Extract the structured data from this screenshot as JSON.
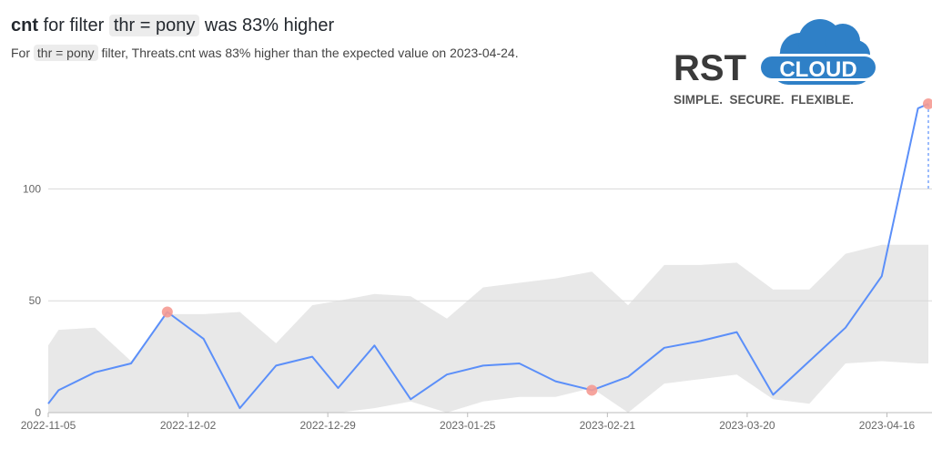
{
  "header": {
    "metric": "cnt",
    "title_pre": "for filter",
    "filter": "thr = pony",
    "title_post": "was 83% higher",
    "subtitle_pre": "For",
    "subtitle_filter": "thr = pony",
    "subtitle_post": "filter, Threats.cnt was 83% higher than the expected value on 2023-04-24."
  },
  "logo": {
    "brand_left": "RST",
    "brand_right": "CLOUD",
    "tagline": "SIMPLE.  SECURE.  FLEXIBLE.",
    "colors": {
      "text": "#3a3a3a",
      "cloud": "#2f80c7",
      "cloud_text": "#ffffff"
    }
  },
  "chart_data": {
    "type": "line",
    "x": [
      "2022-11-05",
      "2022-11-07",
      "2022-11-14",
      "2022-11-21",
      "2022-11-28",
      "2022-12-05",
      "2022-12-12",
      "2022-12-19",
      "2022-12-26",
      "2022-12-31",
      "2023-01-07",
      "2023-01-14",
      "2023-01-21",
      "2023-01-28",
      "2023-02-04",
      "2023-02-11",
      "2023-02-18",
      "2023-02-25",
      "2023-03-04",
      "2023-03-11",
      "2023-03-18",
      "2023-03-25",
      "2023-04-01",
      "2023-04-08",
      "2023-04-15",
      "2023-04-22",
      "2023-04-24"
    ],
    "y": [
      4,
      10,
      18,
      22,
      45,
      33,
      2,
      21,
      25,
      11,
      30,
      6,
      17,
      21,
      22,
      14,
      10,
      16,
      29,
      32,
      36,
      8,
      23,
      38,
      61,
      136,
      138
    ],
    "band_upper": [
      30,
      37,
      38,
      23,
      44,
      44,
      45,
      31,
      48,
      50,
      53,
      52,
      42,
      56,
      58,
      60,
      63,
      48,
      66,
      66,
      67,
      55,
      55,
      71,
      75,
      75,
      75
    ],
    "band_lower": [
      0,
      0,
      0,
      0,
      0,
      0,
      0,
      0,
      0,
      0,
      2,
      5,
      0,
      5,
      7,
      7,
      11,
      0,
      13,
      15,
      17,
      6,
      4,
      22,
      23,
      22,
      22
    ],
    "anomalies": [
      {
        "x": "2022-11-28",
        "y": 45
      },
      {
        "x": "2023-02-18",
        "y": 10
      },
      {
        "x": "2023-04-24",
        "y": 138
      }
    ],
    "x_ticks": [
      "2022-11-05",
      "2022-12-02",
      "2022-12-29",
      "2023-01-25",
      "2023-02-21",
      "2023-03-20",
      "2023-04-16"
    ],
    "y_ticks": [
      0,
      50,
      100
    ],
    "ylim": [
      0,
      160
    ],
    "grid": true,
    "colors": {
      "line": "#5b8ff9",
      "band": "#e8e8e8",
      "anomaly": "#f59a92",
      "grid": "#d9d9d9",
      "axis_text": "#666666"
    }
  }
}
